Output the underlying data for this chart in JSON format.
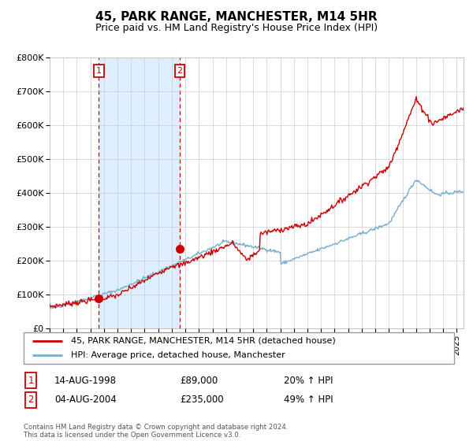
{
  "title": "45, PARK RANGE, MANCHESTER, M14 5HR",
  "subtitle": "Price paid vs. HM Land Registry's House Price Index (HPI)",
  "legend_line1": "45, PARK RANGE, MANCHESTER, M14 5HR (detached house)",
  "legend_line2": "HPI: Average price, detached house, Manchester",
  "sale1_label": "1",
  "sale1_date": "14-AUG-1998",
  "sale1_price": "£89,000",
  "sale1_hpi": "20% ↑ HPI",
  "sale2_label": "2",
  "sale2_date": "04-AUG-2004",
  "sale2_price": "£235,000",
  "sale2_hpi": "49% ↑ HPI",
  "footer": "Contains HM Land Registry data © Crown copyright and database right 2024.\nThis data is licensed under the Open Government Licence v3.0.",
  "red_color": "#cc0000",
  "blue_color": "#7aadcc",
  "shade_color": "#ddeeff",
  "grid_color": "#cccccc",
  "bg_color": "#f5f5f5",
  "ylim": [
    0,
    800000
  ],
  "yticks": [
    0,
    100000,
    200000,
    300000,
    400000,
    500000,
    600000,
    700000,
    800000
  ],
  "ytick_labels": [
    "£0",
    "£100K",
    "£200K",
    "£300K",
    "£400K",
    "£500K",
    "£600K",
    "£700K",
    "£800K"
  ],
  "sale1_year": 1998.62,
  "sale1_value": 89000,
  "sale2_year": 2004.59,
  "sale2_value": 235000,
  "xmin": 1995,
  "xmax": 2025.5
}
